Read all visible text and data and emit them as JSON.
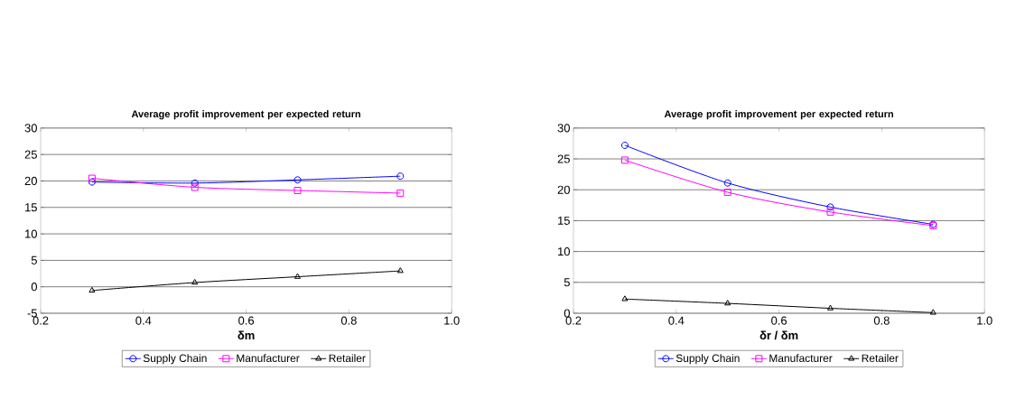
{
  "chart_data": [
    {
      "type": "line",
      "title": "Average profit improvement per expected return",
      "xlabel": "δm",
      "x": [
        0.3,
        0.5,
        0.7,
        0.9
      ],
      "xlim": [
        0.2,
        1.0
      ],
      "xticks": [
        {
          "value": 0.2,
          "label": "0.2"
        },
        {
          "value": 0.4,
          "label": "0.4"
        },
        {
          "value": 0.6,
          "label": "0.6"
        },
        {
          "value": 0.8,
          "label": "0.8"
        },
        {
          "value": 1.0,
          "label": "1.0"
        }
      ],
      "ylim": [
        -5,
        30
      ],
      "yticks": [
        -5,
        0,
        5,
        10,
        15,
        20,
        25,
        30
      ],
      "grid": "y",
      "legend": "bottom",
      "series": [
        {
          "name": "Supply Chain",
          "color": "#0000ff",
          "marker": "circle",
          "values": [
            19.8,
            19.6,
            20.2,
            20.9
          ]
        },
        {
          "name": "Manufacturer",
          "color": "#ff00ff",
          "marker": "square",
          "values": [
            20.5,
            18.8,
            18.2,
            17.7
          ]
        },
        {
          "name": "Retailer",
          "color": "#000000",
          "marker": "triangle",
          "values": [
            -0.7,
            0.8,
            1.9,
            3.0
          ]
        }
      ]
    },
    {
      "type": "line",
      "title": "Average profit improvement per expected return",
      "xlabel": "δr / δm",
      "x": [
        0.3,
        0.5,
        0.7,
        0.9
      ],
      "xlim": [
        0.2,
        1.0
      ],
      "xticks": [
        {
          "value": 0.2,
          "label": "0.2"
        },
        {
          "value": 0.4,
          "label": "0.4"
        },
        {
          "value": 0.6,
          "label": "0.6"
        },
        {
          "value": 0.8,
          "label": "0.8"
        },
        {
          "value": 1.0,
          "label": "1.0"
        }
      ],
      "ylim": [
        0,
        30
      ],
      "yticks": [
        0,
        5,
        10,
        15,
        20,
        25,
        30
      ],
      "grid": "y",
      "legend": "bottom",
      "series": [
        {
          "name": "Supply Chain",
          "color": "#0000ff",
          "marker": "circle",
          "values": [
            27.2,
            21.1,
            17.2,
            14.4
          ]
        },
        {
          "name": "Manufacturer",
          "color": "#ff00ff",
          "marker": "square",
          "values": [
            24.8,
            19.6,
            16.4,
            14.2
          ]
        },
        {
          "name": "Retailer",
          "color": "#000000",
          "marker": "triangle",
          "values": [
            2.3,
            1.6,
            0.8,
            0.1
          ]
        }
      ]
    }
  ]
}
